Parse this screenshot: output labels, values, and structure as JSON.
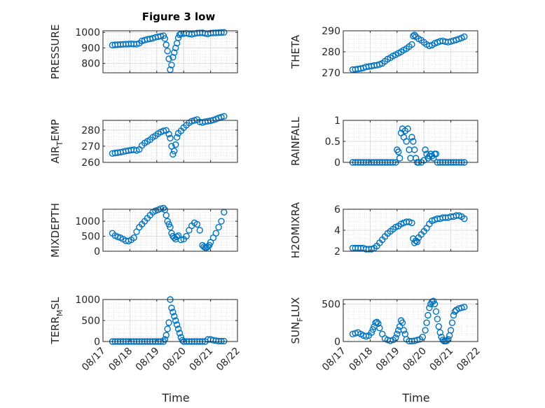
{
  "figure": {
    "title": "Figure 3 low",
    "marker_color": "#0072bd",
    "x_ticks": [
      "08/17",
      "08/18",
      "08/19",
      "08/20",
      "08/21",
      "08/22"
    ],
    "x_label": "Time"
  },
  "chart_data": [
    {
      "type": "scatter",
      "name": "pressure",
      "ylabel": "PRESSURE",
      "ylabel_sub": "",
      "ylim": [
        740,
        1010
      ],
      "yticks": [
        800,
        900,
        1000
      ],
      "grid": true,
      "x": [
        17.35,
        17.45,
        17.55,
        17.65,
        17.75,
        17.85,
        17.95,
        18.05,
        18.15,
        18.25,
        18.35,
        18.45,
        18.55,
        18.65,
        18.75,
        18.85,
        18.95,
        19.05,
        19.15,
        19.25,
        19.3,
        19.35,
        19.4,
        19.45,
        19.5,
        19.55,
        19.6,
        19.65,
        19.7,
        19.75,
        19.8,
        19.85,
        19.9,
        20.0,
        20.1,
        20.2,
        20.3,
        20.4,
        20.5,
        20.6,
        20.7,
        20.8,
        20.9,
        21.0,
        21.1,
        21.2,
        21.3,
        21.4,
        21.5
      ],
      "y": [
        918,
        920,
        921,
        922,
        923,
        924,
        925,
        926,
        925,
        924,
        930,
        945,
        950,
        955,
        958,
        962,
        968,
        972,
        975,
        978,
        960,
        920,
        880,
        830,
        760,
        790,
        840,
        870,
        900,
        930,
        965,
        985,
        990,
        992,
        994,
        990,
        988,
        992,
        995,
        996,
        997,
        993,
        990,
        995,
        996,
        997,
        998,
        999,
        1000
      ]
    },
    {
      "type": "scatter",
      "name": "theta",
      "ylabel": "THETA",
      "ylabel_sub": "",
      "ylim": [
        270,
        290
      ],
      "yticks": [
        270,
        280,
        290
      ],
      "grid": true,
      "x": [
        17.35,
        17.45,
        17.55,
        17.65,
        17.75,
        17.85,
        17.95,
        18.05,
        18.15,
        18.25,
        18.35,
        18.45,
        18.55,
        18.65,
        18.75,
        18.85,
        18.95,
        19.05,
        19.15,
        19.25,
        19.35,
        19.45,
        19.55,
        19.6,
        19.65,
        19.7,
        19.8,
        19.9,
        20.0,
        20.1,
        20.2,
        20.3,
        20.4,
        20.5,
        20.6,
        20.7,
        20.8,
        20.9,
        21.0,
        21.1,
        21.2,
        21.3,
        21.4,
        21.5
      ],
      "y": [
        271.5,
        271.6,
        271.8,
        272,
        272.3,
        272.8,
        273,
        273.2,
        273.5,
        273.6,
        274,
        274.5,
        275.5,
        276.5,
        277.2,
        278,
        278.6,
        279.3,
        280,
        280.8,
        281.5,
        282.5,
        283.5,
        287.5,
        288,
        287.2,
        286.2,
        285.5,
        284.5,
        283.5,
        282.8,
        283.2,
        284,
        284.5,
        285,
        285.2,
        284.8,
        284.6,
        284.9,
        285.3,
        285.7,
        286.1,
        286.6,
        287.2
      ]
    },
    {
      "type": "scatter",
      "name": "air-temp",
      "ylabel": "AIR",
      "ylabel_sub": "T",
      "ylabel_tail": "EMP",
      "ylim": [
        260,
        286
      ],
      "yticks": [
        260,
        270,
        280
      ],
      "grid": true,
      "x": [
        17.35,
        17.45,
        17.55,
        17.65,
        17.75,
        17.85,
        17.95,
        18.05,
        18.15,
        18.25,
        18.35,
        18.45,
        18.55,
        18.65,
        18.75,
        18.85,
        18.95,
        19.05,
        19.15,
        19.25,
        19.35,
        19.45,
        19.5,
        19.55,
        19.6,
        19.65,
        19.7,
        19.75,
        19.8,
        19.9,
        20.0,
        20.1,
        20.2,
        20.3,
        20.4,
        20.5,
        20.6,
        20.7,
        20.8,
        20.9,
        21.0,
        21.1,
        21.2,
        21.3,
        21.4,
        21.5
      ],
      "y": [
        265.5,
        265.8,
        266,
        266.3,
        266.6,
        267,
        267.3,
        267.6,
        267.8,
        267.4,
        268,
        270.5,
        272,
        273,
        274,
        275.5,
        276.5,
        277.8,
        278.8,
        279.5,
        279.8,
        277.5,
        275,
        270,
        265,
        267,
        271,
        275.5,
        278,
        279.5,
        281.5,
        283,
        284.5,
        285.5,
        286,
        286.5,
        285,
        284.7,
        285.2,
        285.5,
        285.8,
        286.2,
        286.8,
        287.5,
        288,
        288.5
      ]
    },
    {
      "type": "scatter",
      "name": "rainfall",
      "ylabel": "RAINFALL",
      "ylabel_sub": "",
      "ylim": [
        0,
        1
      ],
      "yticks": [
        0,
        0.5,
        1
      ],
      "grid": true,
      "x": [
        17.35,
        17.45,
        17.55,
        17.65,
        17.75,
        17.85,
        17.95,
        18.05,
        18.15,
        18.25,
        18.35,
        18.45,
        18.55,
        18.65,
        18.75,
        18.85,
        18.95,
        19.0,
        19.05,
        19.1,
        19.15,
        19.2,
        19.25,
        19.3,
        19.35,
        19.4,
        19.45,
        19.5,
        19.55,
        19.6,
        19.65,
        19.7,
        19.75,
        19.8,
        19.9,
        20.0,
        20.05,
        20.1,
        20.15,
        20.2,
        20.25,
        20.3,
        20.35,
        20.4,
        20.45,
        20.5,
        20.6,
        20.7,
        20.8,
        20.9,
        21.0,
        21.1,
        21.2,
        21.3,
        21.4,
        21.5
      ],
      "y": [
        0,
        0,
        0,
        0,
        0,
        0,
        0,
        0,
        0,
        0,
        0,
        0,
        0,
        0,
        0,
        0,
        0,
        0.3,
        0.25,
        0.1,
        0.7,
        0.8,
        0.6,
        0.75,
        0.5,
        0.8,
        0.3,
        0.1,
        0.6,
        0.5,
        0.3,
        0.1,
        0,
        0,
        0,
        0.05,
        0.3,
        0.2,
        0.1,
        0.15,
        0.2,
        0.15,
        0.1,
        0.2,
        0.2,
        0,
        0,
        0,
        0,
        0,
        0,
        0,
        0,
        0,
        0,
        0
      ]
    },
    {
      "type": "scatter",
      "name": "mixdepth",
      "ylabel": "MIXDEPTH",
      "ylabel_sub": "",
      "ylim": [
        0,
        1400
      ],
      "yticks": [
        0,
        500,
        1000
      ],
      "grid": true,
      "x": [
        17.35,
        17.45,
        17.55,
        17.65,
        17.75,
        17.85,
        17.95,
        18.05,
        18.15,
        18.25,
        18.35,
        18.45,
        18.55,
        18.65,
        18.75,
        18.85,
        18.95,
        19.05,
        19.15,
        19.25,
        19.3,
        19.35,
        19.4,
        19.45,
        19.5,
        19.55,
        19.6,
        19.65,
        19.7,
        19.75,
        19.8,
        19.9,
        20.0,
        20.1,
        20.2,
        20.3,
        20.4,
        20.5,
        20.6,
        20.7,
        20.75,
        20.8,
        20.85,
        20.9,
        20.95,
        21.0,
        21.1,
        21.2,
        21.3,
        21.4,
        21.5
      ],
      "y": [
        600,
        520,
        480,
        450,
        400,
        350,
        340,
        380,
        450,
        650,
        800,
        900,
        1000,
        1100,
        1200,
        1300,
        1350,
        1380,
        1420,
        1440,
        1380,
        1200,
        1000,
        900,
        800,
        600,
        500,
        450,
        400,
        480,
        520,
        380,
        400,
        500,
        700,
        850,
        950,
        900,
        700,
        200,
        150,
        120,
        120,
        150,
        200,
        300,
        450,
        600,
        800,
        1000,
        1300
      ]
    },
    {
      "type": "scatter",
      "name": "h2omixra",
      "ylabel": "H2OMIXRA",
      "ylabel_sub": "",
      "ylim": [
        2,
        6
      ],
      "yticks": [
        2,
        4,
        6
      ],
      "grid": true,
      "x": [
        17.35,
        17.45,
        17.55,
        17.65,
        17.75,
        17.85,
        17.95,
        18.05,
        18.15,
        18.25,
        18.35,
        18.45,
        18.55,
        18.65,
        18.75,
        18.85,
        18.95,
        19.05,
        19.15,
        19.25,
        19.35,
        19.45,
        19.55,
        19.6,
        19.65,
        19.7,
        19.75,
        19.8,
        19.9,
        20.0,
        20.1,
        20.2,
        20.3,
        20.4,
        20.5,
        20.6,
        20.7,
        20.8,
        20.9,
        21.0,
        21.1,
        21.2,
        21.3,
        21.4,
        21.5
      ],
      "y": [
        2.3,
        2.3,
        2.3,
        2.3,
        2.3,
        2.2,
        2.2,
        2.2,
        2.3,
        2.5,
        2.8,
        3.1,
        3.4,
        3.7,
        3.9,
        4.1,
        4.3,
        4.4,
        4.6,
        4.7,
        4.8,
        4.8,
        4.7,
        3.2,
        2.8,
        3.0,
        2.9,
        3.3,
        3.6,
        3.9,
        4.2,
        4.6,
        4.9,
        5.0,
        5.1,
        5.1,
        5.2,
        5.2,
        5.2,
        5.3,
        5.3,
        5.4,
        5.4,
        5.3,
        5.1
      ]
    },
    {
      "type": "scatter",
      "name": "terr-msl",
      "ylabel": "TERR",
      "ylabel_sub": "M",
      "ylabel_tail": "SL",
      "ylim": [
        0,
        1000
      ],
      "yticks": [
        0,
        500,
        1000
      ],
      "grid": true,
      "x": [
        17.35,
        17.45,
        17.55,
        17.65,
        17.75,
        17.85,
        17.95,
        18.05,
        18.15,
        18.25,
        18.35,
        18.45,
        18.55,
        18.65,
        18.75,
        18.85,
        18.95,
        19.05,
        19.15,
        19.25,
        19.3,
        19.35,
        19.4,
        19.45,
        19.5,
        19.55,
        19.6,
        19.65,
        19.7,
        19.75,
        19.8,
        19.85,
        19.9,
        19.95,
        20.0,
        20.1,
        20.2,
        20.3,
        20.4,
        20.5,
        20.6,
        20.7,
        20.8,
        20.9,
        21.0,
        21.1,
        21.2,
        21.3,
        21.4,
        21.5
      ],
      "y": [
        0,
        0,
        0,
        0,
        0,
        0,
        0,
        0,
        0,
        0,
        0,
        0,
        0,
        0,
        0,
        0,
        0,
        0,
        0,
        0,
        50,
        150,
        300,
        450,
        1000,
        800,
        700,
        600,
        500,
        400,
        300,
        200,
        100,
        30,
        0,
        0,
        0,
        0,
        0,
        0,
        0,
        0,
        0,
        50,
        50,
        30,
        20,
        10,
        10,
        10
      ]
    },
    {
      "type": "scatter",
      "name": "sun-flux",
      "ylabel": "SUN",
      "ylabel_sub": "F",
      "ylabel_tail": "LUX",
      "ylim": [
        0,
        560
      ],
      "yticks": [
        0,
        500
      ],
      "grid": true,
      "x": [
        17.35,
        17.45,
        17.55,
        17.65,
        17.75,
        17.85,
        17.95,
        18.05,
        18.1,
        18.15,
        18.2,
        18.25,
        18.3,
        18.35,
        18.45,
        18.55,
        18.65,
        18.75,
        18.85,
        18.95,
        19.0,
        19.05,
        19.1,
        19.15,
        19.2,
        19.25,
        19.3,
        19.35,
        19.45,
        19.55,
        19.65,
        19.75,
        19.85,
        19.95,
        20.05,
        20.1,
        20.15,
        20.2,
        20.25,
        20.3,
        20.35,
        20.4,
        20.45,
        20.5,
        20.55,
        20.6,
        20.65,
        20.7,
        20.75,
        20.8,
        20.85,
        20.9,
        20.95,
        21.0,
        21.05,
        21.1,
        21.15,
        21.2,
        21.3,
        21.4,
        21.5
      ],
      "y": [
        100,
        110,
        120,
        100,
        80,
        70,
        80,
        120,
        160,
        200,
        250,
        260,
        240,
        180,
        100,
        40,
        20,
        10,
        20,
        50,
        100,
        150,
        200,
        280,
        250,
        150,
        100,
        30,
        5,
        5,
        10,
        20,
        30,
        60,
        150,
        250,
        350,
        450,
        500,
        530,
        540,
        500,
        400,
        300,
        200,
        120,
        60,
        20,
        5,
        5,
        10,
        30,
        80,
        150,
        250,
        350,
        400,
        420,
        440,
        450,
        460
      ]
    }
  ]
}
